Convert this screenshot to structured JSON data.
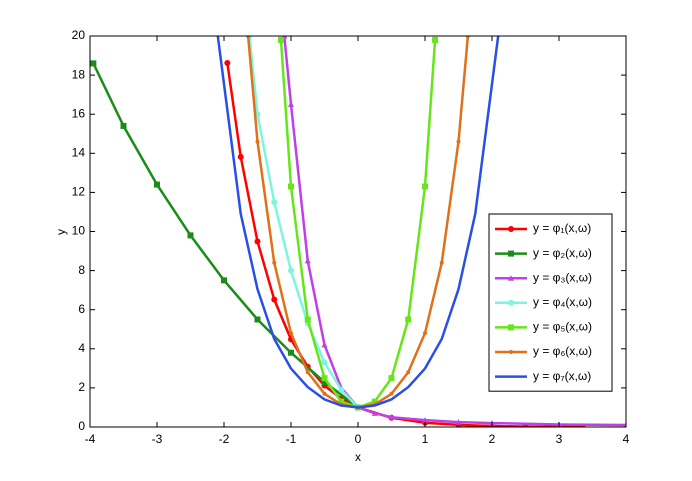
{
  "chart_data": {
    "type": "line",
    "x_label": "x",
    "y_label": "y",
    "xlim": [
      -4,
      4
    ],
    "ylim": [
      0,
      20
    ],
    "xticks": [
      -4,
      -3,
      -2,
      -1,
      0,
      1,
      2,
      3,
      4
    ],
    "yticks": [
      0,
      2,
      4,
      6,
      8,
      10,
      12,
      14,
      16,
      18,
      20
    ],
    "grid": false,
    "legend": "right",
    "series": [
      {
        "name": "y = φ₁(x,ω)",
        "color": "#ff0000",
        "marker": "circle",
        "x": [
          -1.95,
          -1.75,
          -1.5,
          -1.25,
          -1,
          -0.75,
          -0.5,
          -0.25,
          0,
          0.5,
          1,
          1.5,
          2,
          2.5,
          3,
          3.35
        ],
        "values": [
          18.62,
          13.82,
          9.49,
          6.52,
          4.48,
          3.08,
          2.12,
          1.45,
          1,
          0.47,
          0.22,
          0.11,
          0.05,
          0.02,
          0.01,
          0.01
        ]
      },
      {
        "name": "y = φ₂(x,ω)",
        "color": "#1a8c1a",
        "marker": "square",
        "x": [
          -3.95,
          -3.5,
          -3,
          -2.5,
          -2,
          -1.5,
          -1,
          -0.5,
          0
        ],
        "values": [
          18.6,
          15.4,
          12.4,
          9.8,
          7.5,
          5.5,
          3.8,
          2.3,
          1
        ]
      },
      {
        "name": "y = φ₃(x,ω)",
        "color": "#bf40e6",
        "marker": "triangle",
        "x": [
          -1.1,
          -1,
          -0.75,
          -0.5,
          -0.25,
          0,
          0.25,
          0.5,
          1,
          1.5,
          2,
          3,
          4
        ],
        "values": [
          20,
          16.5,
          8.5,
          4.2,
          2,
          1,
          0.7,
          0.5,
          0.35,
          0.25,
          0.2,
          0.13,
          0.1
        ]
      },
      {
        "name": "y = φ₄(x,ω)",
        "color": "#7ff5e0",
        "marker": "circle",
        "x": [
          -1.62,
          -1.5,
          -1.25,
          -1,
          -0.75,
          -0.5,
          -0.25,
          0
        ],
        "values": [
          20,
          16,
          11.5,
          8,
          5.3,
          3.3,
          1.9,
          1
        ]
      },
      {
        "name": "y = φ₅(x,ω)",
        "color": "#66e61a",
        "marker": "square",
        "x": [
          -1.15,
          -1,
          -0.75,
          -0.5,
          -0.25,
          0,
          0.25,
          0.5,
          0.75,
          1,
          1.15
        ],
        "values": [
          19.8,
          12.3,
          5.5,
          2.5,
          1.3,
          1,
          1.3,
          2.5,
          5.5,
          12.3,
          19.8
        ]
      },
      {
        "name": "y = φ₆(x,ω)",
        "color": "#e0701a",
        "marker": "dot",
        "x": [
          -1.64,
          -1.5,
          -1.25,
          -1,
          -0.75,
          -0.5,
          -0.25,
          0,
          0.25,
          0.5,
          0.75,
          1,
          1.25,
          1.5,
          1.64
        ],
        "values": [
          20,
          14.6,
          8.4,
          4.8,
          2.8,
          1.7,
          1.15,
          1,
          1.15,
          1.7,
          2.8,
          4.8,
          8.4,
          14.6,
          20
        ]
      },
      {
        "name": "y = φ₇(x,ω)",
        "color": "#2a4fe6",
        "marker": "none",
        "x": [
          -2.1,
          -1.75,
          -1.5,
          -1.25,
          -1,
          -0.75,
          -0.5,
          -0.25,
          0,
          0.25,
          0.5,
          0.75,
          1,
          1.25,
          1.5,
          1.75,
          2.1
        ],
        "values": [
          20.2,
          10.9,
          7.05,
          4.5,
          2.99,
          2.04,
          1.41,
          1.1,
          1,
          1.1,
          1.41,
          2.04,
          2.99,
          4.5,
          7.05,
          10.9,
          20.2
        ]
      }
    ]
  }
}
